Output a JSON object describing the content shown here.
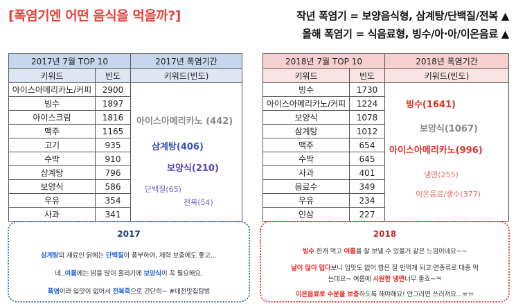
{
  "title": "[폭염기엔 어떤 음식을 먹을까?]",
  "headline_1": "작년 폭염기 = 보양음식형, 삼계탕/단백질/전복 ▲",
  "headline_2": "올해 폭염기 = 식음료형, 빙수/아·아/이온음료 ▲",
  "table_2017": {
    "left_header": "2017년 7월 TOP 10",
    "right_header": "2017년 폭염기간",
    "col_keyword": "키워드",
    "col_freq": "빈도",
    "col_right": "키워드(빈도)",
    "rows": [
      {
        "keyword": "아이스아메리카노/커피",
        "freq": "2900"
      },
      {
        "keyword": "빙수",
        "freq": "1897"
      },
      {
        "keyword": "아이스크림",
        "freq": "1816"
      },
      {
        "keyword": "맥주",
        "freq": "1165"
      },
      {
        "keyword": "고기",
        "freq": "935"
      },
      {
        "keyword": "수박",
        "freq": "910"
      },
      {
        "keyword": "삼계탕",
        "freq": "796"
      },
      {
        "keyword": "보양식",
        "freq": "586"
      },
      {
        "keyword": "우유",
        "freq": "354"
      },
      {
        "keyword": "사과",
        "freq": "341"
      }
    ],
    "words": [
      {
        "text": "아이스아메리카노 (442)",
        "color": "#8a8a8a"
      },
      {
        "text": "삼계탕(406)",
        "color": "#3550b8"
      },
      {
        "text": "보양식(210)",
        "color": "#5b3fb5"
      },
      {
        "text": "단백질(65)",
        "color": "#6f63c2"
      },
      {
        "text": "전복(54)",
        "color": "#6f63c2"
      }
    ]
  },
  "table_2018": {
    "left_header": "2018년 7월 TOP 10",
    "right_header": "2018년 폭염기간",
    "col_keyword": "키워드",
    "col_freq": "빈도",
    "col_right": "키워드(빈도)",
    "rows": [
      {
        "keyword": "빙수",
        "freq": "1730"
      },
      {
        "keyword": "아이스아메리카노/커피",
        "freq": "1224"
      },
      {
        "keyword": "보양식",
        "freq": "1078"
      },
      {
        "keyword": "삼계탕",
        "freq": "1012"
      },
      {
        "keyword": "맥주",
        "freq": "654"
      },
      {
        "keyword": "수박",
        "freq": "645"
      },
      {
        "keyword": "사과",
        "freq": "401"
      },
      {
        "keyword": "음료수",
        "freq": "349"
      },
      {
        "keyword": "우유",
        "freq": "234"
      },
      {
        "keyword": "인삼",
        "freq": "227"
      }
    ],
    "words": [
      {
        "text": "빙수(1641)",
        "color": "#e2302b"
      },
      {
        "text": "보양식(1067)",
        "color": "#8a8a8a"
      },
      {
        "text": "아이스아메리카노(996)",
        "color": "#e2302b"
      },
      {
        "text": "냉면(255)",
        "color": "#e46a62"
      },
      {
        "text": "이온음료/생수(377)",
        "color": "#e46a62"
      }
    ]
  },
  "box_2017": {
    "title": "2017",
    "line1": {
      "a": "삼계탕",
      "b": "의 재료인 닭에는 ",
      "c": "단백질",
      "d": "이 풍부하여, 체력 보충에도 좋고…"
    },
    "line2": {
      "a": "네..",
      "b": "여름",
      "c": "에는 땀을 많이 흘리기에 ",
      "d": "보양식",
      "e": "이 꼭 필요해요."
    },
    "line3": {
      "a": "폭염",
      "b": "이라 입맛이 없어서 ",
      "c": "전복죽",
      "d": "으로 간단히~ #대전맛집탐방"
    }
  },
  "box_2018": {
    "title": "2018",
    "line1": {
      "a": "빙수",
      "b": " 한개 먹고 ",
      "c": "여름",
      "d": "을 잘 보낼 수 있을거 같은 느낌이네요~~"
    },
    "line2": {
      "a": "날이 많이 덥다",
      "b": "보니 입맛도 없어 밥은 잘 안먹게 되고 면종류로 대충 먹"
    },
    "line3": {
      "a": "는데요~ 여름에 ",
      "b": "시원한 냉면",
      "c": "너무 좋죠~ㅋ"
    },
    "line4": {
      "a": "이온음료로 수분을 보충",
      "b": "하도록 해야해요! 안그러면 쓰러져요...ㅠㅠ"
    }
  }
}
